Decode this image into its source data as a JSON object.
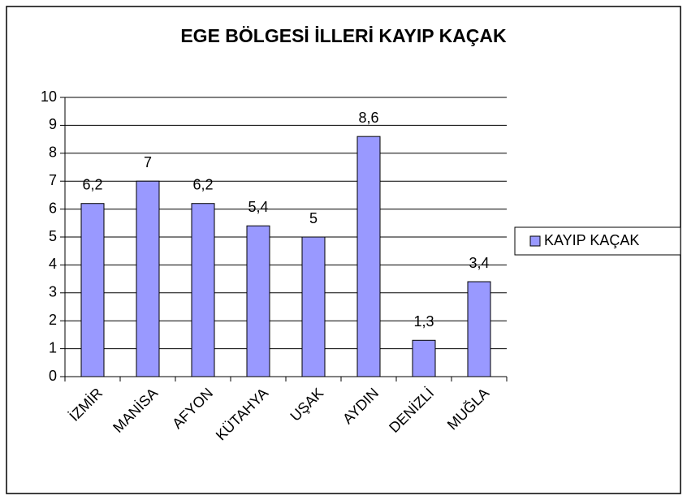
{
  "chart_data": {
    "type": "bar",
    "title": "EGE BÖLGESİ İLLERİ KAYIP KAÇAK",
    "categories": [
      "İZMİR",
      "MANİSA",
      "AFYON",
      "KÜTAHYA",
      "UŞAK",
      "AYDIN",
      "DENİZLİ",
      "MUĞLA"
    ],
    "series": [
      {
        "name": "KAYIP KAÇAK",
        "color": "#9999ff",
        "values": [
          6.2,
          7,
          6.2,
          5.4,
          5,
          8.6,
          1.3,
          3.4
        ],
        "value_labels": [
          "6,2",
          "7",
          "6,2",
          "5,4",
          "5",
          "8,6",
          "1,3",
          "3,4"
        ]
      }
    ],
    "ylim": [
      0,
      10
    ],
    "yticks": [
      0,
      1,
      2,
      3,
      4,
      5,
      6,
      7,
      8,
      9,
      10
    ],
    "grid": true,
    "legend": "right"
  }
}
